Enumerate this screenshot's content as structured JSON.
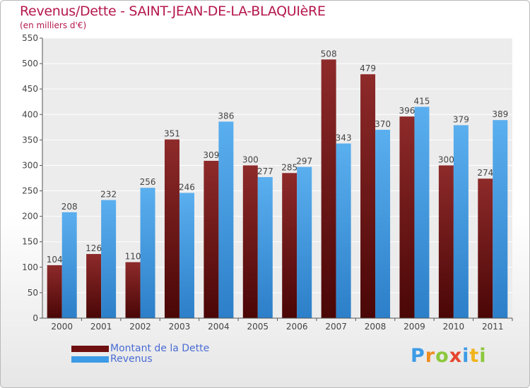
{
  "title": "Revenus/Dette - SAINT-JEAN-DE-LA-BLAQUIèRE",
  "subtitle": "(en milliers d'€)",
  "logo": {
    "p": "P",
    "r": "r",
    "o": "o",
    "x": "x",
    "i1": "i",
    "t": "t",
    "i2": "i"
  },
  "chart_data": {
    "type": "bar",
    "categories": [
      "2000",
      "2001",
      "2002",
      "2003",
      "2004",
      "2005",
      "2006",
      "2007",
      "2008",
      "2009",
      "2010",
      "2011"
    ],
    "series": [
      {
        "name": "Montant de la Dette",
        "color": "#7a1a1a",
        "values": [
          104,
          126,
          110,
          351,
          309,
          300,
          285,
          508,
          479,
          396,
          300,
          274
        ]
      },
      {
        "name": "Revenus",
        "color": "#3c9be6",
        "values": [
          208,
          232,
          256,
          246,
          386,
          277,
          297,
          343,
          370,
          415,
          379,
          389
        ]
      }
    ],
    "ylim": [
      0,
      550
    ],
    "yticks": [
      0,
      50,
      100,
      150,
      200,
      250,
      300,
      350,
      400,
      450,
      500,
      550
    ],
    "grid": true,
    "legend": "bottom-left"
  }
}
